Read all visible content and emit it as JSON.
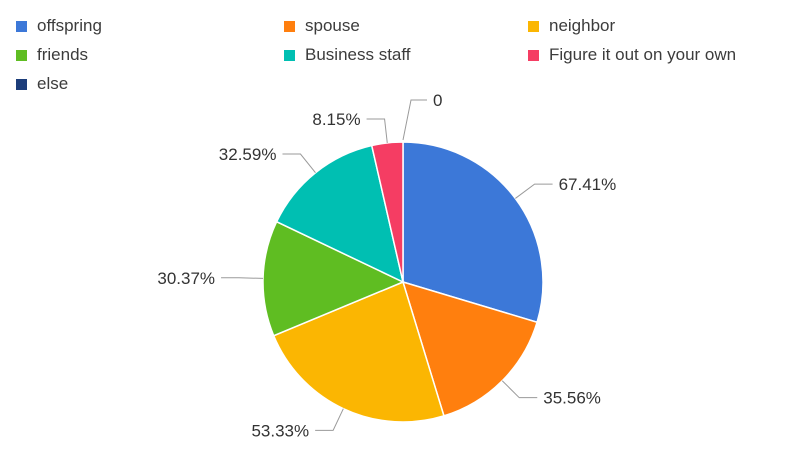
{
  "chart_data": {
    "type": "pie",
    "categories": [
      "offspring",
      "spouse",
      "neighbor",
      "friends",
      "Business staff",
      "Figure it out on your own",
      "else"
    ],
    "values": [
      67.41,
      35.56,
      53.33,
      30.37,
      32.59,
      8.15,
      0
    ],
    "labels": [
      "67.41%",
      "35.56%",
      "53.33%",
      "30.37%",
      "32.59%",
      "8.15%",
      "0"
    ],
    "colors": [
      "#3c78d8",
      "#ff7f0e",
      "#fbb602",
      "#5fbd22",
      "#00bfb2",
      "#f53d63",
      "#1c3d7a"
    ],
    "legend_position": "top"
  }
}
